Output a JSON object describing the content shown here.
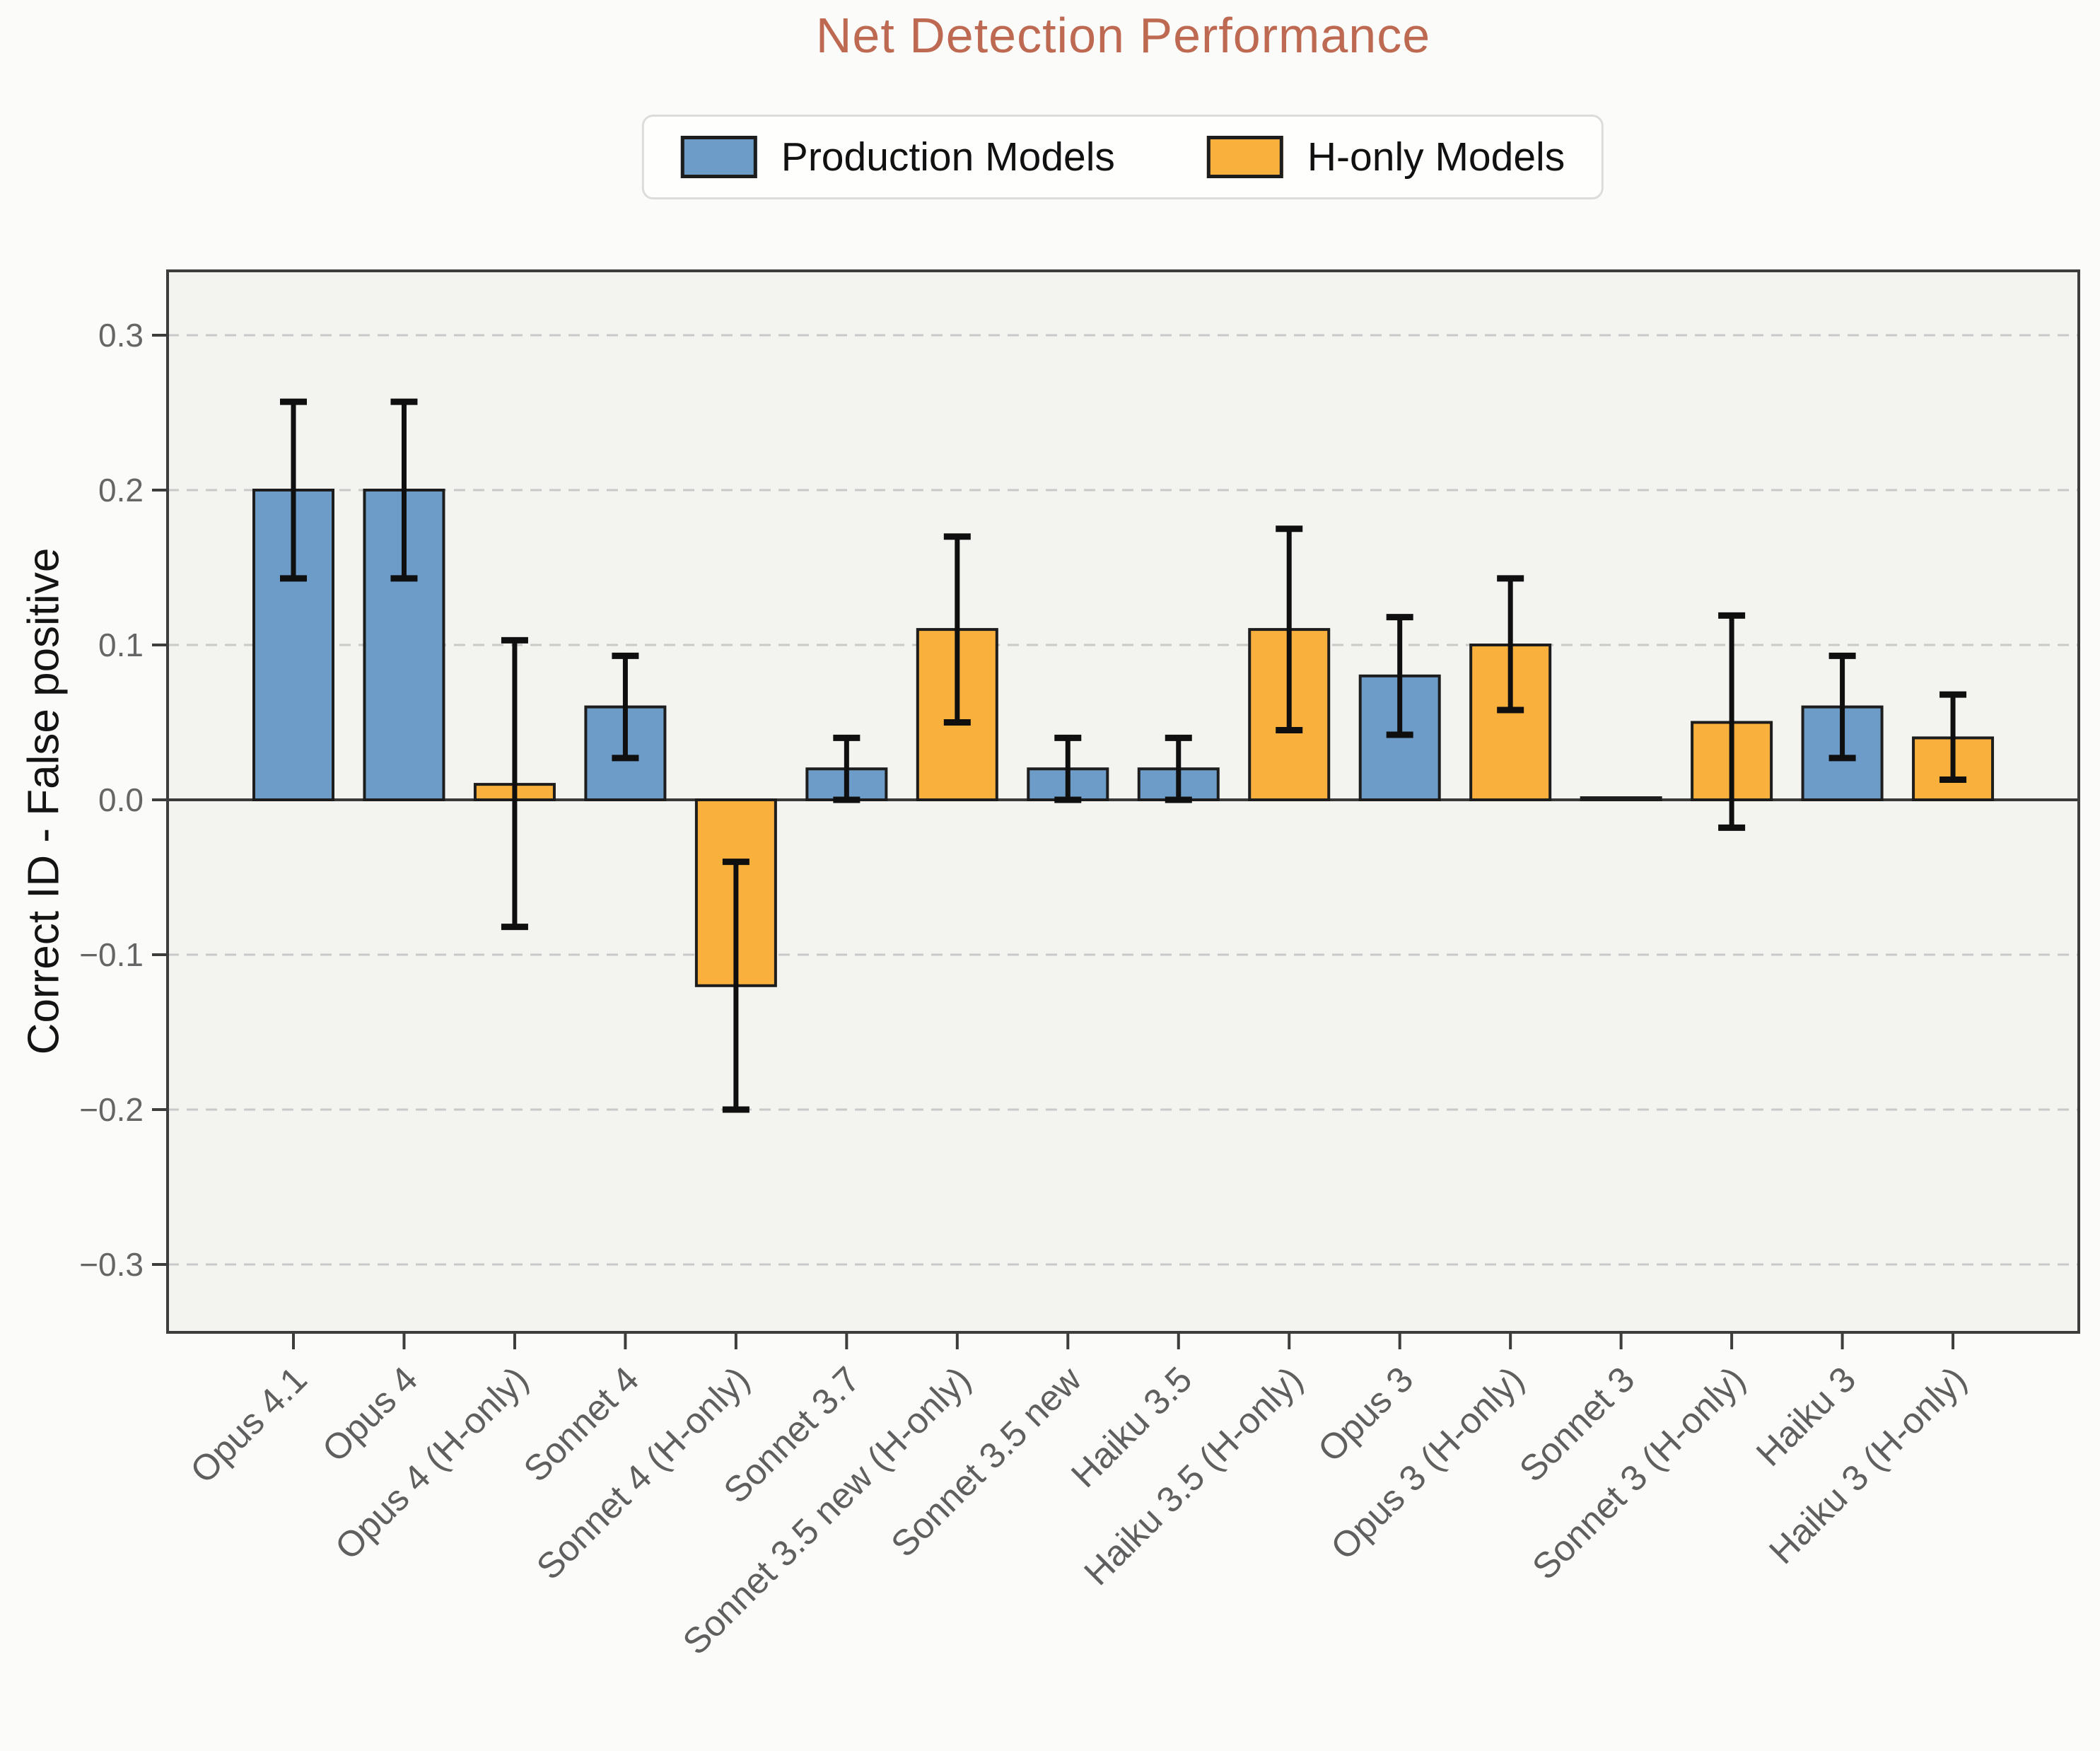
{
  "title": "Net Detection Performance",
  "legend": {
    "items": [
      {
        "key": "production",
        "label": "Production Models",
        "color": "#6C9CC7"
      },
      {
        "key": "h_only",
        "label": "H-only Models",
        "color": "#F9B03C"
      }
    ]
  },
  "colors": {
    "title": "#BE6951",
    "figure_bg": "#FBFBF9",
    "plot_bg": "#F3F3F0",
    "production_bar": "#6C9CC7",
    "h_only_bar": "#F9B03C",
    "bar_edge": "#1D1D1D",
    "error_bar": "#0F0F0F",
    "gridline": "#C9C9C9",
    "zero_line": "#3A3A3A",
    "spine": "#3D3D3D",
    "tick_label": "#666666",
    "x_tick_label": "#5F5F5F"
  },
  "chart_data": {
    "type": "bar",
    "title": "Net Detection Performance",
    "xlabel": "",
    "ylabel": "Correct ID - False positive",
    "ylim": [
      -0.34,
      0.34
    ],
    "yticks": [
      0.3,
      0.2,
      0.1,
      0.0,
      -0.1,
      -0.2,
      -0.3
    ],
    "grid": "horizontal dashed",
    "legend_position": "top center outside",
    "x_tick_rotation_deg": 45,
    "series_legend": [
      "Production Models",
      "H-only Models"
    ],
    "bars": [
      {
        "label": "Opus 4.1",
        "series": "production",
        "value": 0.2,
        "ci_low": 0.143,
        "ci_high": 0.257
      },
      {
        "label": "Opus 4",
        "series": "production",
        "value": 0.2,
        "ci_low": 0.143,
        "ci_high": 0.257
      },
      {
        "label": "Opus 4 (H-only)",
        "series": "h_only",
        "value": 0.01,
        "ci_low": -0.082,
        "ci_high": 0.103
      },
      {
        "label": "Sonnet 4",
        "series": "production",
        "value": 0.06,
        "ci_low": 0.027,
        "ci_high": 0.093
      },
      {
        "label": "Sonnet 4 (H-only)",
        "series": "h_only",
        "value": -0.12,
        "ci_low": -0.2,
        "ci_high": -0.04
      },
      {
        "label": "Sonnet 3.7",
        "series": "production",
        "value": 0.02,
        "ci_low": 0.0,
        "ci_high": 0.04
      },
      {
        "label": "Sonnet 3.5 new (H-only)",
        "series": "h_only",
        "value": 0.11,
        "ci_low": 0.05,
        "ci_high": 0.17
      },
      {
        "label": "Sonnet 3.5 new",
        "series": "production",
        "value": 0.02,
        "ci_low": 0.0,
        "ci_high": 0.04
      },
      {
        "label": "Haiku 3.5",
        "series": "production",
        "value": 0.02,
        "ci_low": 0.0,
        "ci_high": 0.04
      },
      {
        "label": "Haiku 3.5 (H-only)",
        "series": "h_only",
        "value": 0.11,
        "ci_low": 0.045,
        "ci_high": 0.175
      },
      {
        "label": "Opus 3",
        "series": "production",
        "value": 0.08,
        "ci_low": 0.042,
        "ci_high": 0.118
      },
      {
        "label": "Opus 3 (H-only)",
        "series": "h_only",
        "value": 0.1,
        "ci_low": 0.058,
        "ci_high": 0.143
      },
      {
        "label": "Sonnet 3",
        "series": "production",
        "value": 0.0,
        "ci_low": null,
        "ci_high": null
      },
      {
        "label": "Sonnet 3 (H-only)",
        "series": "h_only",
        "value": 0.05,
        "ci_low": -0.018,
        "ci_high": 0.119
      },
      {
        "label": "Haiku 3",
        "series": "production",
        "value": 0.06,
        "ci_low": 0.027,
        "ci_high": 0.093
      },
      {
        "label": "Haiku 3 (H-only)",
        "series": "h_only",
        "value": 0.04,
        "ci_low": 0.013,
        "ci_high": 0.068
      }
    ]
  }
}
